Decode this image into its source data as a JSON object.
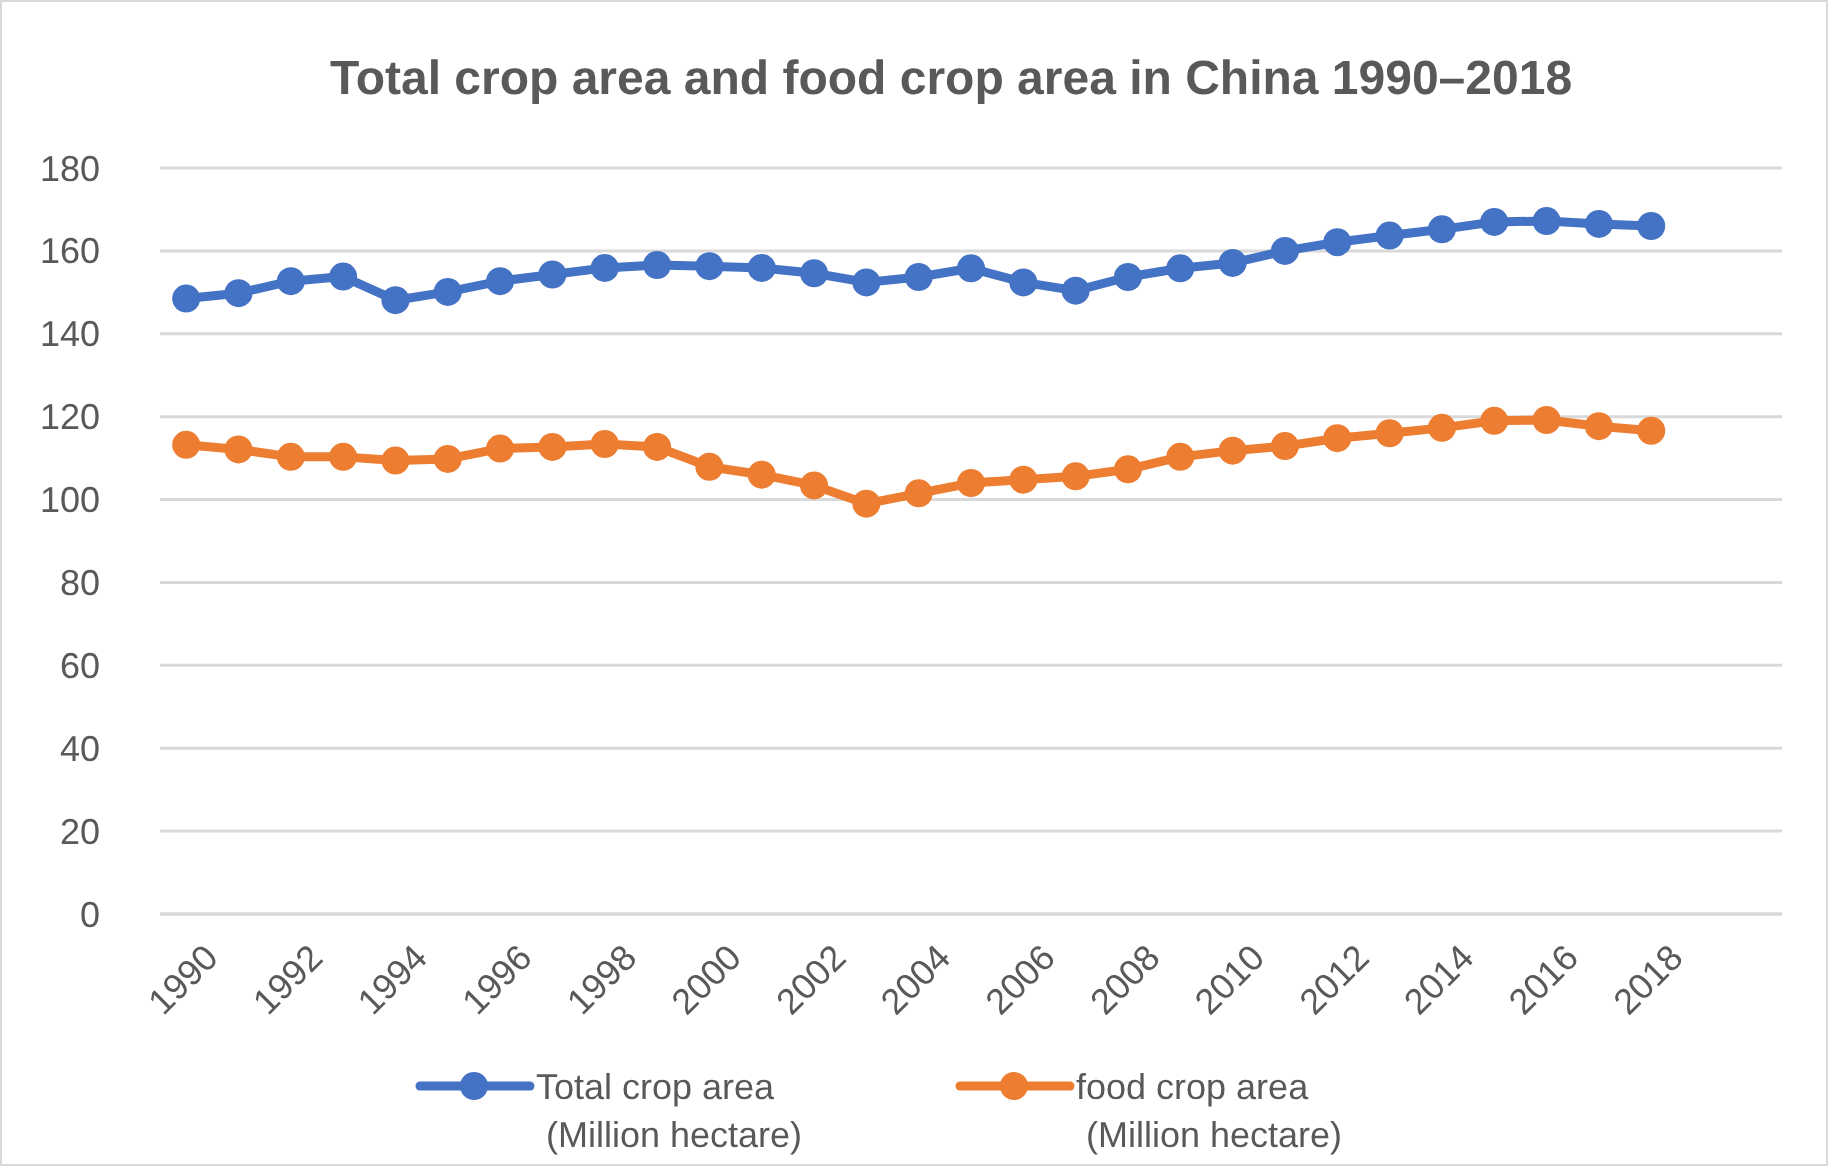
{
  "chart_data": {
    "type": "line",
    "title": "Total crop area and food crop area in China 1990–2018",
    "x": [
      1990,
      1991,
      1992,
      1993,
      1994,
      1995,
      1996,
      1997,
      1998,
      1999,
      2000,
      2001,
      2002,
      2003,
      2004,
      2005,
      2006,
      2007,
      2008,
      2009,
      2010,
      2011,
      2012,
      2013,
      2014,
      2015,
      2016,
      2017,
      2018
    ],
    "series": [
      {
        "name": "Total crop area (Million hectare)",
        "color": "#4472c4",
        "values": [
          148.5,
          149.8,
          152.7,
          153.8,
          148.1,
          150.1,
          152.7,
          154.3,
          155.9,
          156.6,
          156.3,
          155.9,
          154.6,
          152.4,
          153.7,
          155.8,
          152.4,
          150.4,
          153.7,
          155.8,
          157.1,
          160.0,
          162.1,
          163.7,
          165.2,
          167.0,
          167.2,
          166.5,
          166.0
        ]
      },
      {
        "name": "food crop area (Million hectare)",
        "color": "#ed7d31",
        "values": [
          113.2,
          112.1,
          110.3,
          110.3,
          109.4,
          109.8,
          112.3,
          112.7,
          113.4,
          112.7,
          107.9,
          106.0,
          103.4,
          99.0,
          101.5,
          104.0,
          104.8,
          105.6,
          107.3,
          110.3,
          111.8,
          112.9,
          114.8,
          116.0,
          117.3,
          119.0,
          119.2,
          117.7,
          116.6
        ]
      }
    ],
    "xlim": [
      1989.5,
      2020.5
    ],
    "xticks": [
      1990,
      1992,
      1994,
      1996,
      1998,
      2000,
      2002,
      2004,
      2006,
      2008,
      2010,
      2012,
      2014,
      2016,
      2018
    ],
    "ylim": [
      0,
      180
    ],
    "yticks": [
      0,
      20,
      40,
      60,
      80,
      100,
      120,
      140,
      160,
      180
    ],
    "grid": "y",
    "legend": "bottom",
    "marker": "circle",
    "line_style": "solid"
  }
}
